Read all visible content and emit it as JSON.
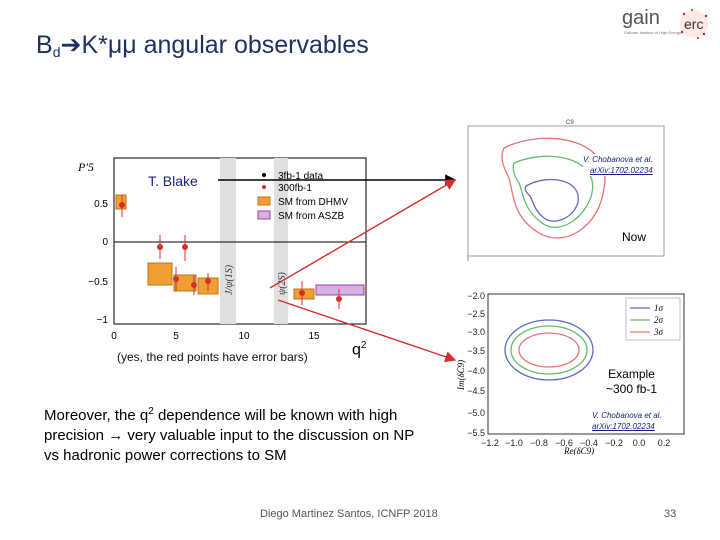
{
  "slide": {
    "title_b": "B",
    "title_sub": "d",
    "title_rest": "K*μμ angular observables",
    "logo": {
      "gain_text": "gain",
      "erc_text": "erc"
    }
  },
  "left_plot": {
    "ylabel": "P'5",
    "legend": [
      "3fb-1 data",
      "300fb-1",
      "SM from DHMV",
      "SM from ASZB"
    ],
    "yticks": [
      "0.5",
      "0",
      "−0.5",
      "−1"
    ],
    "xticks": [
      "0",
      "5",
      "10",
      "15"
    ],
    "resonances": [
      "J/ψ(1S)",
      "ψ(2S)"
    ],
    "annotation": "T. Blake",
    "caption": "(yes, the red points have error bars)",
    "xaxis_label_q": "q",
    "xaxis_label_sup": "2"
  },
  "right_top_plot": {
    "top_label": "C9",
    "cite_line1": "V. Chobanova et al.",
    "cite_line2": "arXiv:1702.02234",
    "now_label": "Now"
  },
  "right_bottom_plot": {
    "yticks": [
      "−2.0",
      "−2.5",
      "−3.0",
      "−3.5",
      "−4.0",
      "−4.5",
      "−5.0",
      "−5.5"
    ],
    "xticks": [
      "−1.2",
      "−1.0",
      "−0.8",
      "−0.6",
      "−0.4",
      "−0.2",
      "0.0",
      "0.2"
    ],
    "legend": [
      "1σ",
      "2σ",
      "3σ"
    ],
    "ylabel": "Im(δC9)",
    "xlabel": "Re(δC9)",
    "example_line1": "Example",
    "example_line2": "~300 fb-1",
    "cite_line1": "V. Chobanova et al.",
    "cite_line2": "arXiv:1702.02234"
  },
  "text": {
    "para_pre": "Moreover, the q",
    "para_sup": "2",
    "para_post": " dependence will be known with high precision → very valuable input to the discussion on NP vs hadronic power corrections to SM",
    "footer": "Diego Martinez Santos, ICNFP 2018",
    "page_number": "33"
  },
  "colors": {
    "title": "#1f2f5f",
    "arrow_black": "#000000",
    "arrow_red": "#d32f2f",
    "data_red": "#d32f2f",
    "band_orange": "#f0a030",
    "band_purple": "#b070c0"
  }
}
